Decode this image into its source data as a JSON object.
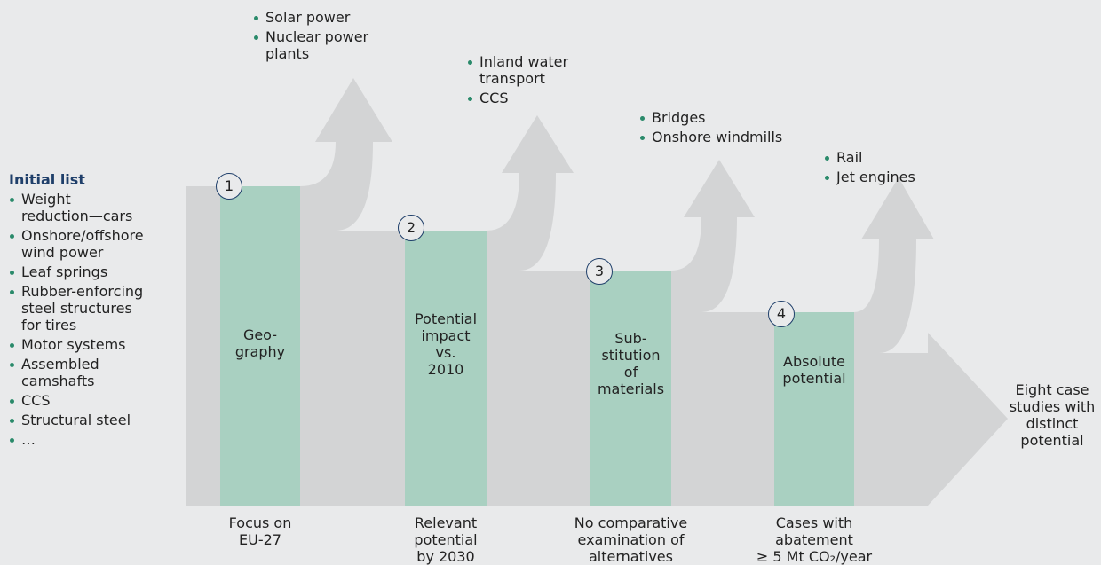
{
  "initial_list": {
    "title": "Initial list",
    "items": [
      "Weight\nreduction—cars",
      "Onshore/offshore\nwind power",
      "Leaf springs",
      "Rubber-enforcing\nsteel structures\nfor tires",
      "Motor systems",
      "Assembled\ncamshafts",
      "CCS",
      "Structural steel",
      "…"
    ]
  },
  "stages": [
    {
      "number": "1",
      "label": "Geo-\ngraphy",
      "caption": "Focus on\nEU-27",
      "excluded": [
        "Solar power",
        "Nuclear power\nplants"
      ]
    },
    {
      "number": "2",
      "label": "Potential\nimpact\nvs.\n2010",
      "caption": "Relevant\npotential\nby 2030",
      "excluded": [
        "Inland water\ntransport",
        "CCS"
      ]
    },
    {
      "number": "3",
      "label": "Sub-\nstitution\nof\nmaterials",
      "caption": "No comparative\nexamination of\nalternatives",
      "excluded": [
        "Bridges",
        "Onshore windmills"
      ]
    },
    {
      "number": "4",
      "label": "Absolute\npotential",
      "caption": "Cases with\nabatement\n≥ 5 Mt CO₂/year",
      "excluded": [
        "Rail",
        "Jet engines"
      ]
    }
  ],
  "result": "Eight case\nstudies with\ndistinct\npotential"
}
